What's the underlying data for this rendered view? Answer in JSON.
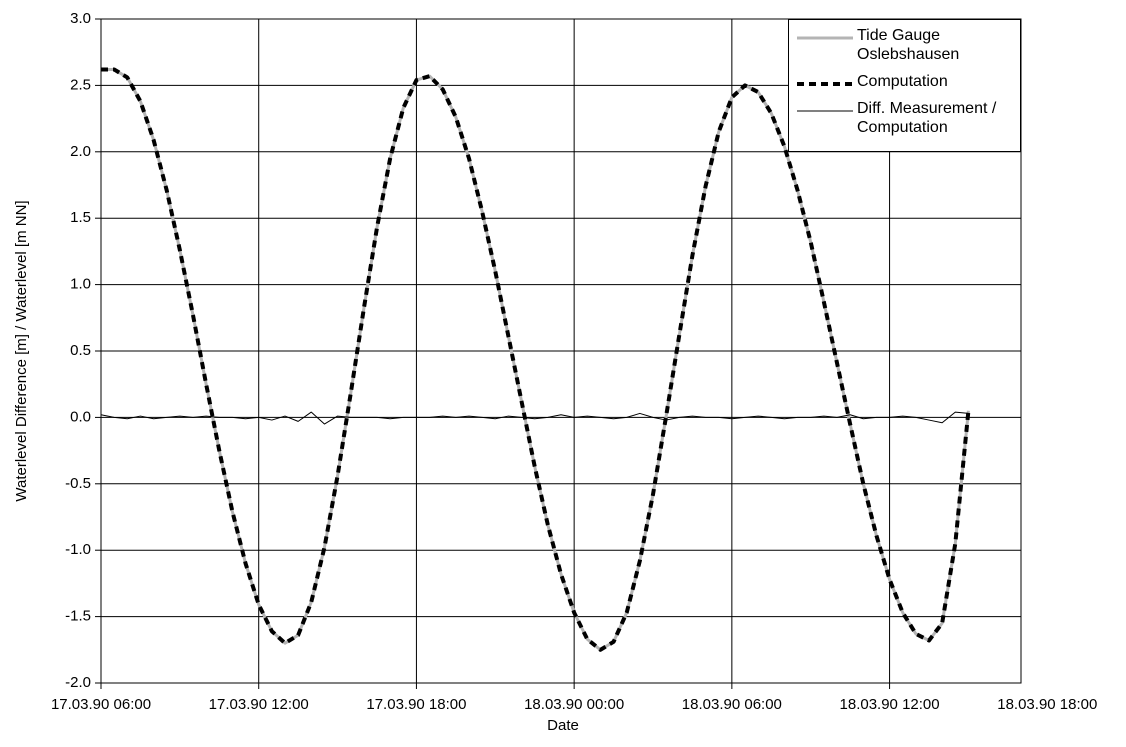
{
  "chart_data": {
    "type": "line",
    "xlabel": "Date",
    "ylabel": "Waterlevel Difference [m] / Waterlevel [m NN]",
    "x": [
      "17.03.90 06:00",
      "17.03.90 06:30",
      "17.03.90 07:00",
      "17.03.90 07:30",
      "17.03.90 08:00",
      "17.03.90 08:30",
      "17.03.90 09:00",
      "17.03.90 09:30",
      "17.03.90 10:00",
      "17.03.90 10:30",
      "17.03.90 11:00",
      "17.03.90 11:30",
      "17.03.90 12:00",
      "17.03.90 12:30",
      "17.03.90 13:00",
      "17.03.90 13:30",
      "17.03.90 14:00",
      "17.03.90 14:30",
      "17.03.90 15:00",
      "17.03.90 15:30",
      "17.03.90 16:00",
      "17.03.90 16:30",
      "17.03.90 17:00",
      "17.03.90 17:30",
      "17.03.90 18:00",
      "17.03.90 18:30",
      "17.03.90 19:00",
      "17.03.90 19:30",
      "17.03.90 20:00",
      "17.03.90 20:30",
      "17.03.90 21:00",
      "17.03.90 21:30",
      "17.03.90 22:00",
      "17.03.90 22:30",
      "17.03.90 23:00",
      "17.03.90 23:30",
      "18.03.90 00:00",
      "18.03.90 00:30",
      "18.03.90 01:00",
      "18.03.90 01:30",
      "18.03.90 02:00",
      "18.03.90 02:30",
      "18.03.90 03:00",
      "18.03.90 03:30",
      "18.03.90 04:00",
      "18.03.90 04:30",
      "18.03.90 05:00",
      "18.03.90 05:30",
      "18.03.90 06:00",
      "18.03.90 06:30",
      "18.03.90 07:00",
      "18.03.90 07:30",
      "18.03.90 08:00",
      "18.03.90 08:30",
      "18.03.90 09:00",
      "18.03.90 09:30",
      "18.03.90 10:00",
      "18.03.90 10:30",
      "18.03.90 11:00",
      "18.03.90 11:30",
      "18.03.90 12:00",
      "18.03.90 12:30",
      "18.03.90 13:00",
      "18.03.90 13:30",
      "18.03.90 14:00",
      "18.03.90 14:30",
      "18.03.90 15:00"
    ],
    "series": [
      {
        "name": "Tide Gauge Oslebshausen",
        "color": "#b4b4b4",
        "width": 3,
        "style": "solid",
        "values": [
          2.62,
          2.62,
          2.56,
          2.38,
          2.09,
          1.71,
          1.26,
          0.77,
          0.25,
          -0.25,
          -0.71,
          -1.1,
          -1.41,
          -1.61,
          -1.7,
          -1.64,
          -1.39,
          -0.98,
          -0.44,
          0.18,
          0.82,
          1.43,
          1.95,
          2.33,
          2.54,
          2.57,
          2.47,
          2.26,
          1.95,
          1.55,
          1.1,
          0.61,
          0.12,
          -0.37,
          -0.81,
          -1.18,
          -1.47,
          -1.67,
          -1.75,
          -1.69,
          -1.47,
          -1.08,
          -0.58,
          0.01,
          0.62,
          1.22,
          1.74,
          2.15,
          2.41,
          2.5,
          2.45,
          2.29,
          2.04,
          1.71,
          1.32,
          0.87,
          0.41,
          -0.05,
          -0.5,
          -0.89,
          -1.22,
          -1.47,
          -1.63,
          -1.68,
          -1.55,
          -0.95,
          0.05
        ]
      },
      {
        "name": "Computation",
        "color": "#000000",
        "width": 4,
        "style": "dashed",
        "values": [
          2.62,
          2.62,
          2.56,
          2.38,
          2.09,
          1.71,
          1.26,
          0.77,
          0.25,
          -0.25,
          -0.71,
          -1.1,
          -1.41,
          -1.61,
          -1.7,
          -1.64,
          -1.39,
          -0.98,
          -0.44,
          0.18,
          0.82,
          1.43,
          1.95,
          2.33,
          2.54,
          2.57,
          2.47,
          2.26,
          1.95,
          1.55,
          1.1,
          0.61,
          0.12,
          -0.37,
          -0.81,
          -1.18,
          -1.47,
          -1.67,
          -1.75,
          -1.69,
          -1.47,
          -1.08,
          -0.58,
          0.01,
          0.62,
          1.22,
          1.74,
          2.15,
          2.41,
          2.5,
          2.45,
          2.29,
          2.04,
          1.71,
          1.32,
          0.87,
          0.41,
          -0.05,
          -0.5,
          -0.89,
          -1.22,
          -1.47,
          -1.63,
          -1.68,
          -1.55,
          -0.95,
          0.05
        ]
      },
      {
        "name": "Diff. Measurement / Computation",
        "color": "#000000",
        "width": 1,
        "style": "solid",
        "values": [
          0.02,
          0,
          -0.01,
          0.01,
          -0.01,
          0,
          0.01,
          0,
          0.01,
          0,
          0,
          -0.01,
          0,
          -0.02,
          0.01,
          -0.03,
          0.04,
          -0.05,
          0.01,
          0,
          0,
          0,
          -0.01,
          0,
          0,
          0,
          0.01,
          0,
          0.01,
          0,
          -0.01,
          0.01,
          0,
          -0.01,
          0,
          0.02,
          0,
          0.01,
          0,
          -0.01,
          0,
          0.03,
          0,
          -0.02,
          0,
          0.01,
          0,
          0,
          -0.01,
          0,
          0.01,
          0,
          -0.01,
          0,
          0,
          0.01,
          0,
          0.02,
          -0.01,
          0,
          0,
          0.01,
          0,
          -0.02,
          -0.04,
          0.04,
          0.03
        ]
      }
    ],
    "xlim": [
      "17.03.90 06:00",
      "18.03.90 17:00"
    ],
    "xticks": [
      "17.03.90 06:00",
      "17.03.90 12:00",
      "17.03.90 18:00",
      "18.03.90 00:00",
      "18.03.90 06:00",
      "18.03.90 12:00",
      "18.03.90 18:00"
    ],
    "ylim": [
      -2,
      3
    ],
    "yticks": [
      {
        "value": -2,
        "label": "-2.0"
      },
      {
        "value": -1.5,
        "label": "-1.5"
      },
      {
        "value": -1,
        "label": "-1.0"
      },
      {
        "value": -0.5,
        "label": "-0.5"
      },
      {
        "value": 0,
        "label": "0.0"
      },
      {
        "value": 0.5,
        "label": "0.5"
      },
      {
        "value": 1,
        "label": "1.0"
      },
      {
        "value": 1.5,
        "label": "1.5"
      },
      {
        "value": 2,
        "label": "2.0"
      },
      {
        "value": 2.5,
        "label": "2.5"
      },
      {
        "value": 3,
        "label": "3.0"
      }
    ],
    "grid": true,
    "legend": "top-right"
  }
}
